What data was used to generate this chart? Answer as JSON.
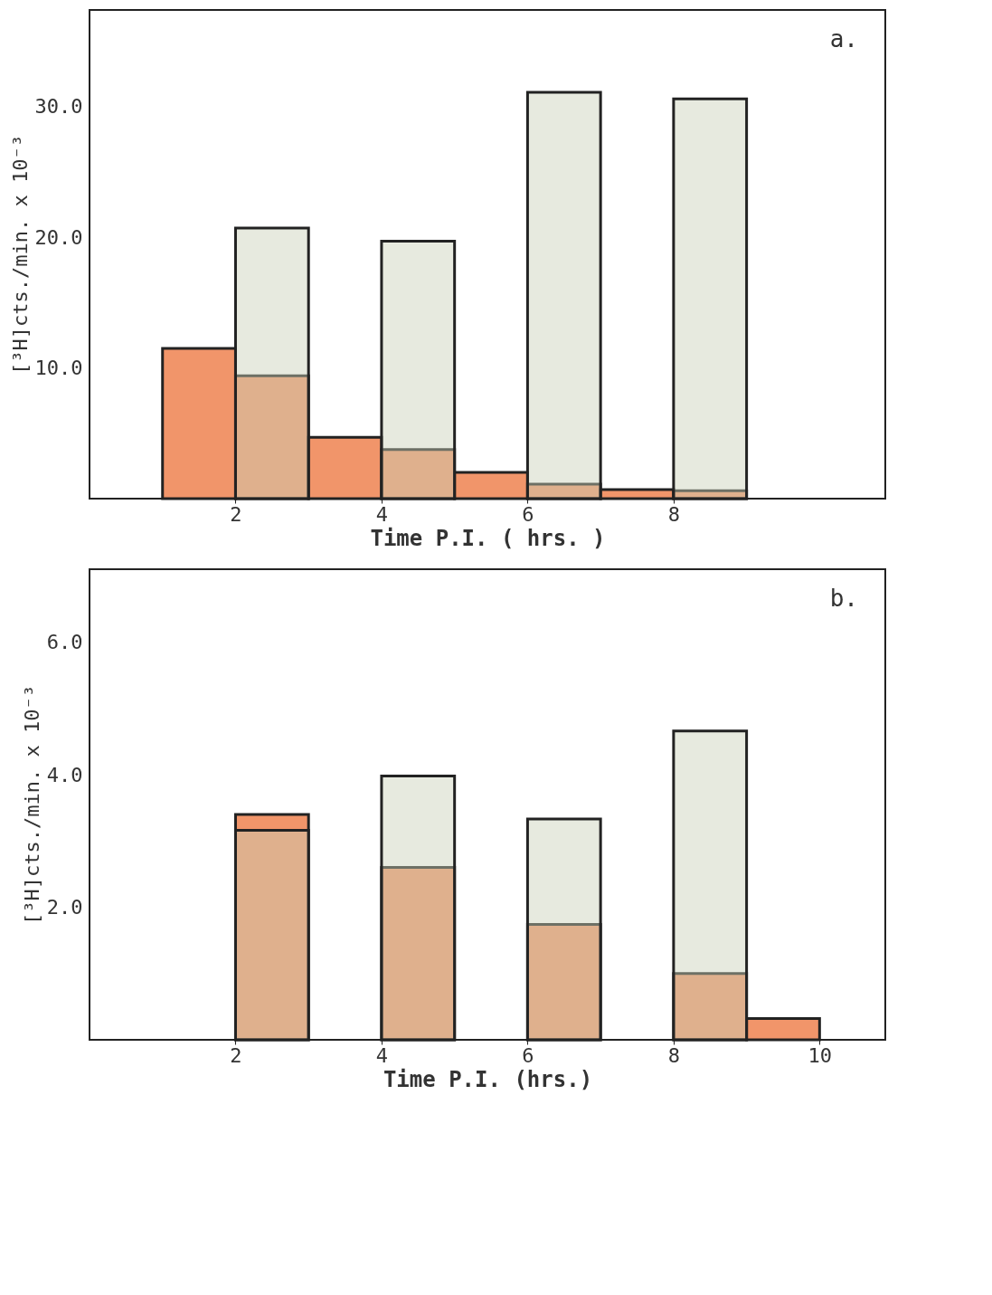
{
  "chart_data": [
    {
      "type": "bar",
      "xlabel": "Time  P.I.  ( hrs. )",
      "ylabel": "[³H]cts./min. x 10⁻³",
      "annotations": [
        "a."
      ],
      "xlim": [
        0,
        10.9
      ],
      "xticks": [
        2,
        4,
        6,
        8
      ],
      "ylim": [
        0,
        37.4
      ],
      "yticks": [
        {
          "value": 10,
          "label": "10.0"
        },
        {
          "value": 20,
          "label": "20.0"
        },
        {
          "value": 30,
          "label": "30.0"
        }
      ],
      "grid": false,
      "series": [
        {
          "color": "#c9d1b8",
          "x": [
            2.5,
            4.5,
            6.5,
            8.5
          ],
          "values": [
            20.7,
            19.7,
            31.1,
            30.6
          ]
        },
        {
          "color": "#f08a5a",
          "x": [
            1.5,
            2.5,
            3.5,
            4.5,
            5.5,
            6.5,
            7.5,
            8.5
          ],
          "values": [
            11.5,
            9.4,
            4.7,
            3.75,
            2.0,
            1.1,
            0.7,
            0.6
          ]
        }
      ]
    },
    {
      "type": "bar",
      "xlabel": "Time P.I. (hrs.)",
      "ylabel": "[³H]cts./min. x 10⁻³",
      "annotations": [
        "b."
      ],
      "xlim": [
        0,
        10.9
      ],
      "xticks": [
        2,
        4,
        6,
        8,
        10
      ],
      "ylim": [
        0,
        7.1
      ],
      "yticks": [
        {
          "value": 2,
          "label": "2.0"
        },
        {
          "value": 4,
          "label": "4.0"
        },
        {
          "value": 6,
          "label": "6.0"
        }
      ],
      "grid": false,
      "series": [
        {
          "color": "#c9d1b8",
          "x": [
            2.5,
            4.5,
            6.5,
            8.5
          ],
          "values": [
            3.16,
            3.98,
            3.33,
            4.66
          ]
        },
        {
          "color": "#f08a5a",
          "x": [
            2.5,
            4.5,
            6.5,
            8.5,
            9.5
          ],
          "values": [
            3.4,
            2.6,
            1.74,
            1.0,
            0.32
          ]
        }
      ]
    }
  ]
}
